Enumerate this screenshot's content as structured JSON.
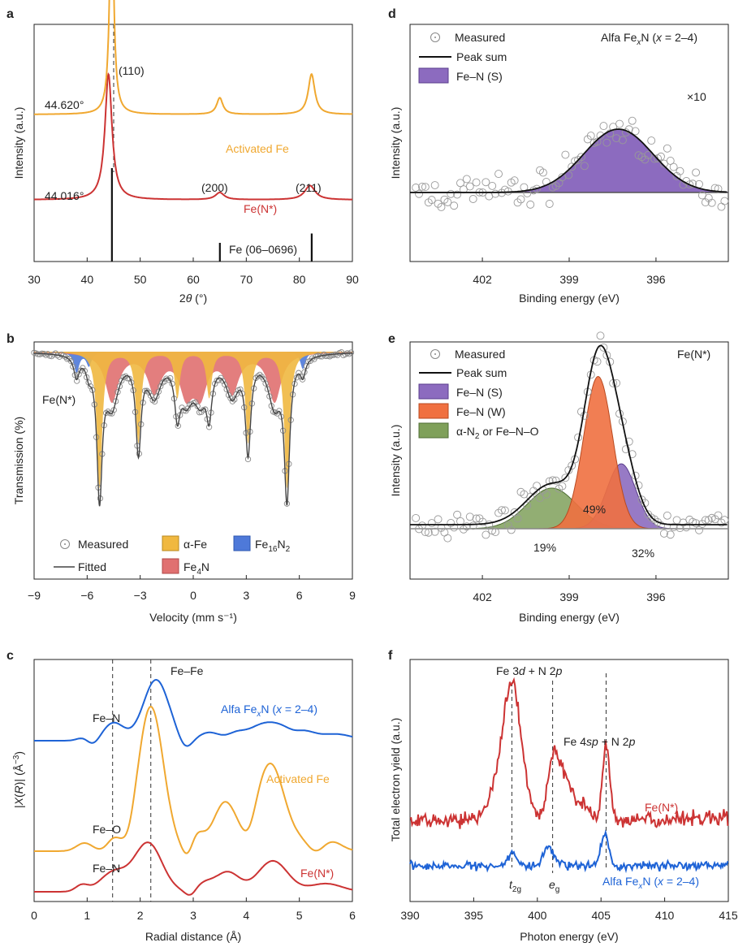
{
  "colors": {
    "activated": "#F0A830",
    "feN": "#CC3333",
    "alfa": "#1E63D6",
    "purple": "#8C6BBF",
    "orange": "#F07040",
    "green": "#7FA05A",
    "red_fill": "#E07070",
    "blue_fill": "#4E79D9",
    "yellow_fill": "#F0B840",
    "gray": "#9a9a9a"
  },
  "chart_data": [
    {
      "panel": "a",
      "type": "line",
      "xlabel": "2θ (°)",
      "ylabel": "Intensity (a.u.)",
      "xlim": [
        30,
        90
      ],
      "xticks": [
        30,
        40,
        50,
        60,
        70,
        80,
        90
      ],
      "series": [
        {
          "name": "Activated Fe",
          "color": "#F0A830",
          "baseline": 0.62,
          "peaks": [
            [
              44.62,
              0.95,
              0.45
            ],
            [
              65.0,
              0.07,
              0.7
            ],
            [
              82.3,
              0.17,
              0.75
            ]
          ]
        },
        {
          "name": "Fe(N*)",
          "color": "#CC3333",
          "baseline": 0.26,
          "peaks": [
            [
              44.02,
              0.53,
              0.8
            ],
            [
              65.0,
              0.03,
              1.0
            ],
            [
              82.0,
              0.06,
              1.2
            ]
          ]
        }
      ],
      "reference": {
        "name": "Fe (06–0696)",
        "lines": [
          [
            44.67,
            1.0
          ],
          [
            65.02,
            0.2
          ],
          [
            82.33,
            0.3
          ]
        ]
      },
      "annotations": {
        "peak110": "(110)",
        "peak200": "(200)",
        "peak211": "(211)",
        "pos_activated": "44.620°",
        "pos_feN": "44.016°"
      }
    },
    {
      "panel": "b",
      "type": "line",
      "xlabel": "Velocity (mm s⁻¹)",
      "ylabel": "Transmission (%)",
      "xlim": [
        -9,
        9
      ],
      "xticks": [
        -9,
        -6,
        -3,
        0,
        3,
        6,
        9
      ],
      "sample": "Fe(N*)",
      "components": [
        {
          "name": "α-Fe",
          "color": "#F0B840",
          "lines": [
            [
              -5.3,
              0.78
            ],
            [
              -3.1,
              0.52
            ],
            [
              -0.9,
              0.26
            ],
            [
              0.9,
              0.26
            ],
            [
              3.1,
              0.52
            ],
            [
              5.3,
              0.78
            ]
          ]
        },
        {
          "name": "Fe4N",
          "color": "#E07070",
          "lines": [
            [
              -4.6,
              0.28
            ],
            [
              -2.2,
              0.22
            ],
            [
              -0.4,
              0.22
            ],
            [
              0.4,
              0.22
            ],
            [
              2.2,
              0.22
            ],
            [
              4.6,
              0.28
            ]
          ]
        },
        {
          "name": "Fe16N2",
          "color": "#4E79D9",
          "lines": [
            [
              -6.6,
              0.12
            ],
            [
              6.2,
              0.1
            ],
            [
              -5.9,
              0.08
            ]
          ]
        }
      ],
      "legend": {
        "measured": "Measured",
        "fitted": "Fitted",
        "alpha": "α-Fe",
        "fe4n": "Fe",
        "fe4n_sub": "4",
        "fe4n_suffix": "N",
        "fe16": "Fe",
        "fe16_sub": "16",
        "fe16_mid": "N",
        "fe16_sub2": "2"
      }
    },
    {
      "panel": "c",
      "type": "line",
      "xlabel": "Radial distance (Å)",
      "ylabel": "|X(R)| (Å⁻³)",
      "xlim": [
        0,
        6
      ],
      "xticks": [
        0,
        1,
        2,
        3,
        4,
        5,
        6
      ],
      "series": [
        {
          "name": "Alfa FexN (x = 2–4)",
          "color": "#1E63D6"
        },
        {
          "name": "Activated Fe",
          "color": "#F0A830"
        },
        {
          "name": "Fe(N*)",
          "color": "#CC3333"
        }
      ],
      "annotations": {
        "fefe": "Fe–Fe",
        "fen_top": "Fe–N",
        "feo": "Fe–O",
        "fen_bottom": "Fe–N"
      },
      "dashed_x": [
        1.48,
        2.2
      ]
    },
    {
      "panel": "d",
      "type": "scatter",
      "xlabel": "Binding energy (eV)",
      "ylabel": "Intensity (a.u.)",
      "xlim": [
        404.5,
        393.5
      ],
      "xticks": [
        402,
        399,
        396
      ],
      "title": "Alfa FexN (x = 2–4)",
      "multiplier": "×10",
      "components": [
        {
          "name": "Fe–N (S)",
          "center": 397.3,
          "height": 0.78,
          "sigma": 1.2,
          "color": "#8C6BBF"
        }
      ],
      "legend": {
        "measured": "Measured",
        "peak_sum": "Peak sum",
        "fen_s": "Fe–N (S)"
      }
    },
    {
      "panel": "e",
      "type": "scatter",
      "xlabel": "Binding energy (eV)",
      "ylabel": "Intensity (a.u.)",
      "xlim": [
        404.5,
        393.5
      ],
      "xticks": [
        402,
        399,
        396
      ],
      "title": "Fe(N*)",
      "components": [
        {
          "name": "α-N2 or Fe–N–O",
          "center": 399.6,
          "height": 0.2,
          "sigma": 0.85,
          "color": "#7FA05A",
          "percent": "19%"
        },
        {
          "name": "Fe–N (W)",
          "center": 398.0,
          "height": 0.75,
          "sigma": 0.5,
          "color": "#F07040",
          "percent": "49%"
        },
        {
          "name": "Fe–N (S)",
          "center": 397.2,
          "height": 0.32,
          "sigma": 0.5,
          "color": "#8C6BBF",
          "percent": "32%"
        }
      ],
      "legend": {
        "measured": "Measured",
        "peak_sum": "Peak sum",
        "fen_s": "Fe–N (S)",
        "fen_w": "Fe–N (W)",
        "an2": "α-N",
        "an2_sub": "2",
        "an2_suffix": " or Fe–N–O"
      }
    },
    {
      "panel": "f",
      "type": "line",
      "xlabel": "Photon energy (eV)",
      "ylabel": "Total electron yield (a.u.)",
      "xlim": [
        390,
        415
      ],
      "xticks": [
        390,
        395,
        400,
        405,
        410,
        415
      ],
      "series": [
        {
          "name": "Fe(N*)",
          "color": "#CC3333"
        },
        {
          "name": "Alfa FexN (x = 2–4)",
          "color": "#1E63D6"
        }
      ],
      "annotations": {
        "fe3d": "Fe 3",
        "fe3d_d": "d",
        "fe3d_rest": " + N 2",
        "fe3d_p": "p",
        "fe4sp": "Fe 4",
        "fe4sp_sp": "sp",
        "fe4sp_rest": " + N 2",
        "fe4sp_p": "p",
        "t2g": "t",
        "t2g_sub": "2g",
        "eg": "e",
        "eg_sub": "g"
      },
      "dashed_x": [
        398.0,
        401.2,
        405.4
      ]
    }
  ],
  "labels": {
    "panels": [
      "a",
      "b",
      "c",
      "d",
      "e",
      "f"
    ],
    "a_activated": "Activated Fe",
    "a_feN": "Fe(N*)",
    "c_alfa_pre": "Alfa Fe",
    "c_alfa_x": "x",
    "c_alfa_post": "N (",
    "c_alfa_x2": "x",
    "c_alfa_end": " = 2–4)",
    "c_activated": "Activated Fe",
    "c_feN": "Fe(N*)",
    "f_feN": "Fe(N*)",
    "f_alfa_pre": "Alfa Fe",
    "f_alfa_x": "x",
    "f_alfa_post": "N (",
    "f_alfa_x2": "x",
    "f_alfa_end": " = 2–4)",
    "d_title_pre": "Alfa Fe",
    "d_title_x": "x",
    "d_title_post": "N (",
    "d_title_x2": "x",
    "d_title_end": " = 2–4)"
  }
}
